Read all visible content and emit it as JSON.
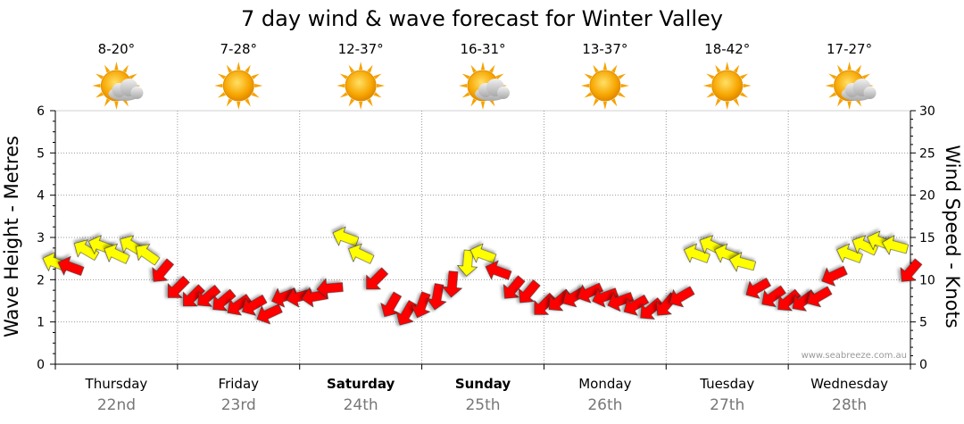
{
  "chart_data": {
    "type": "line",
    "title": "7 day wind & wave forecast for Winter Valley",
    "ylabel_left": "Wave Height - Metres",
    "ylabel_right": "Wind Speed - Knots",
    "ylim_left": [
      0,
      6
    ],
    "ylim_right": [
      0,
      30
    ],
    "yticks_left": [
      "0",
      "1",
      "2",
      "3",
      "4",
      "5",
      "6"
    ],
    "yticks_right": [
      "0",
      "5",
      "10",
      "15",
      "20",
      "25",
      "30"
    ],
    "grid": true,
    "watermark": "www.seabreeze.com.au",
    "days": [
      {
        "day": "Thursday",
        "date": "22nd",
        "temp": "8-20°",
        "weather": "partly-cloudy",
        "bold": false
      },
      {
        "day": "Friday",
        "date": "23rd",
        "temp": "7-28°",
        "weather": "sunny",
        "bold": false
      },
      {
        "day": "Saturday",
        "date": "24th",
        "temp": "12-37°",
        "weather": "sunny",
        "bold": true
      },
      {
        "day": "Sunday",
        "date": "25th",
        "temp": "16-31°",
        "weather": "partly-cloudy",
        "bold": true
      },
      {
        "day": "Monday",
        "date": "26th",
        "temp": "13-37°",
        "weather": "sunny",
        "bold": false
      },
      {
        "day": "Tuesday",
        "date": "27th",
        "temp": "18-42°",
        "weather": "sunny",
        "bold": false
      },
      {
        "day": "Wednesday",
        "date": "28th",
        "temp": "17-27°",
        "weather": "partly-cloudy",
        "bold": false
      }
    ],
    "series": [
      {
        "units": "knots",
        "x_unit": "hours from start of Thursday",
        "x": [
          0,
          3,
          6,
          9,
          12,
          15,
          18,
          21,
          24,
          27,
          30,
          33,
          36,
          39,
          42,
          45,
          48,
          51,
          54,
          57,
          60,
          63,
          66,
          69,
          72,
          75,
          78,
          81,
          84,
          87,
          90,
          93,
          96,
          99,
          102,
          105,
          108,
          111,
          114,
          117,
          120,
          123,
          126,
          129,
          132,
          135,
          138,
          141,
          144,
          147,
          150,
          153,
          156,
          159,
          162,
          165,
          168
        ],
        "values": [
          12,
          11.5,
          13.5,
          14,
          13,
          14,
          13,
          11,
          9,
          8,
          8,
          7.5,
          7,
          7,
          6,
          8,
          8,
          8,
          9,
          15,
          13,
          10,
          7,
          6,
          7,
          8,
          9.5,
          12,
          13,
          11,
          9,
          8.5,
          7,
          7.5,
          8,
          8.5,
          8,
          7.5,
          7,
          6.5,
          7,
          8,
          13,
          14,
          13,
          12,
          9,
          8,
          7.5,
          7.5,
          8,
          10.5,
          13,
          14,
          14.5,
          14,
          11
        ],
        "direction_deg": [
          200,
          200,
          210,
          200,
          205,
          210,
          215,
          130,
          135,
          135,
          140,
          140,
          145,
          150,
          155,
          160,
          165,
          170,
          175,
          200,
          205,
          135,
          120,
          120,
          110,
          100,
          95,
          95,
          200,
          200,
          130,
          130,
          135,
          140,
          150,
          155,
          160,
          160,
          150,
          140,
          130,
          150,
          200,
          205,
          200,
          195,
          150,
          145,
          140,
          145,
          150,
          155,
          200,
          205,
          200,
          195,
          130
        ],
        "colors": {
          "low": "#ff0000",
          "high": "#ffff00"
        },
        "threshold": 12
      }
    ]
  }
}
